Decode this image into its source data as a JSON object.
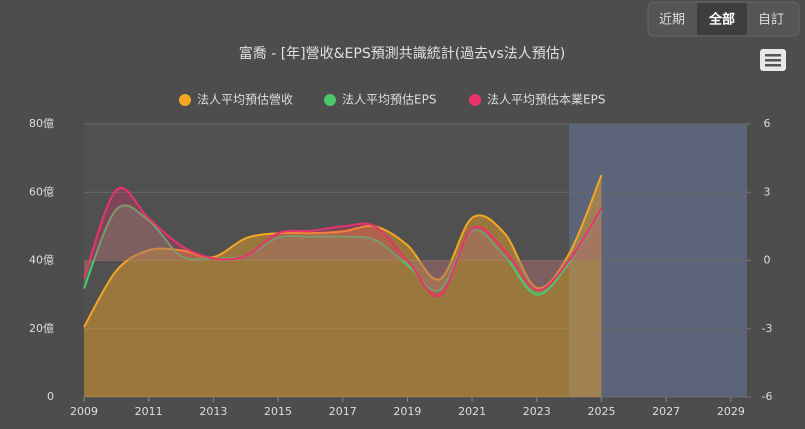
{
  "chart_data": {
    "type": "line",
    "title": "富喬 - [年]營收&EPS預測共識統計(過去vs法人預估)",
    "buttons": [
      "近期",
      "全部",
      "自訂"
    ],
    "x": [
      2009,
      2010,
      2011,
      2012,
      2013,
      2014,
      2015,
      2016,
      2017,
      2018,
      2019,
      2020,
      2021,
      2022,
      2023,
      2024,
      2025
    ],
    "xlim": [
      2009,
      2029.5
    ],
    "xticks": [
      2009,
      2011,
      2013,
      2015,
      2017,
      2019,
      2021,
      2023,
      2025,
      2027,
      2029
    ],
    "ylim": [
      0,
      80
    ],
    "yticks": [
      {
        "value": 0,
        "label": "0"
      },
      {
        "value": 20,
        "label": "20億"
      },
      {
        "value": 40,
        "label": "40億"
      },
      {
        "value": 60,
        "label": "60億"
      },
      {
        "value": 80,
        "label": "80億"
      }
    ],
    "y2lim": [
      -6,
      6
    ],
    "y2ticks": [
      -6,
      -3,
      0,
      3,
      6
    ],
    "forecast_band": [
      2024,
      2029.5
    ],
    "grid": true,
    "legend": "top",
    "series": [
      {
        "name": "法人平均預估營收",
        "color": "#f5a623",
        "values": [
          20.5,
          37,
          43,
          43,
          41,
          46.5,
          48,
          48,
          48.5,
          50,
          44.5,
          34.5,
          52.5,
          48,
          32,
          42,
          65
        ]
      },
      {
        "name": "法人平均預估EPS",
        "color": "#4cc76d",
        "axis": "y2",
        "values": [
          -1.23,
          2.24,
          1.76,
          0.2,
          0.1,
          0.2,
          1.0,
          1.05,
          1.05,
          0.9,
          -0.2,
          -1.3,
          1.3,
          0.2,
          -1.5,
          -0.1,
          2.2
        ]
      },
      {
        "name": "法人平均預估本業EPS",
        "color": "#e8336d",
        "axis": "y2",
        "values": [
          -0.8,
          3.1,
          1.85,
          0.65,
          0.1,
          0.2,
          1.2,
          1.3,
          1.5,
          1.5,
          0,
          -1.55,
          1.4,
          0.45,
          -1.3,
          0,
          2.3
        ]
      }
    ]
  }
}
